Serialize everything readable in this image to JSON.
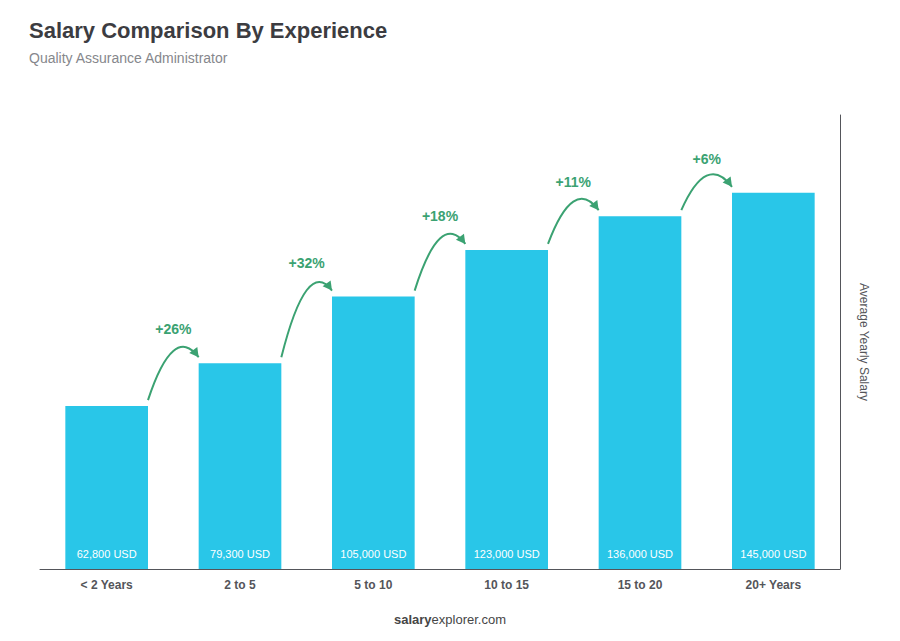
{
  "chart_data": {
    "type": "bar",
    "title": "Salary Comparison By Experience",
    "subtitle": "Quality Assurance Administrator",
    "categories": [
      "< 2 Years",
      "2 to 5",
      "5 to 10",
      "10 to 15",
      "15 to 20",
      "20+ Years"
    ],
    "values": [
      62800,
      79300,
      105000,
      123000,
      136000,
      145000
    ],
    "value_labels": [
      "62,800 USD",
      "79,300 USD",
      "105,000 USD",
      "123,000 USD",
      "136,000 USD",
      "145,000 USD"
    ],
    "data_labels": true,
    "color": "#29c6e8",
    "annotations": [
      "+26%",
      "+32%",
      "+18%",
      "+11%",
      "+6%"
    ],
    "ylabel": "Average Yearly Salary",
    "watermark": [
      "salary",
      "explorer.com"
    ],
    "ylim": [
      0,
      175000
    ],
    "grid": false,
    "tick_labels": "x"
  }
}
